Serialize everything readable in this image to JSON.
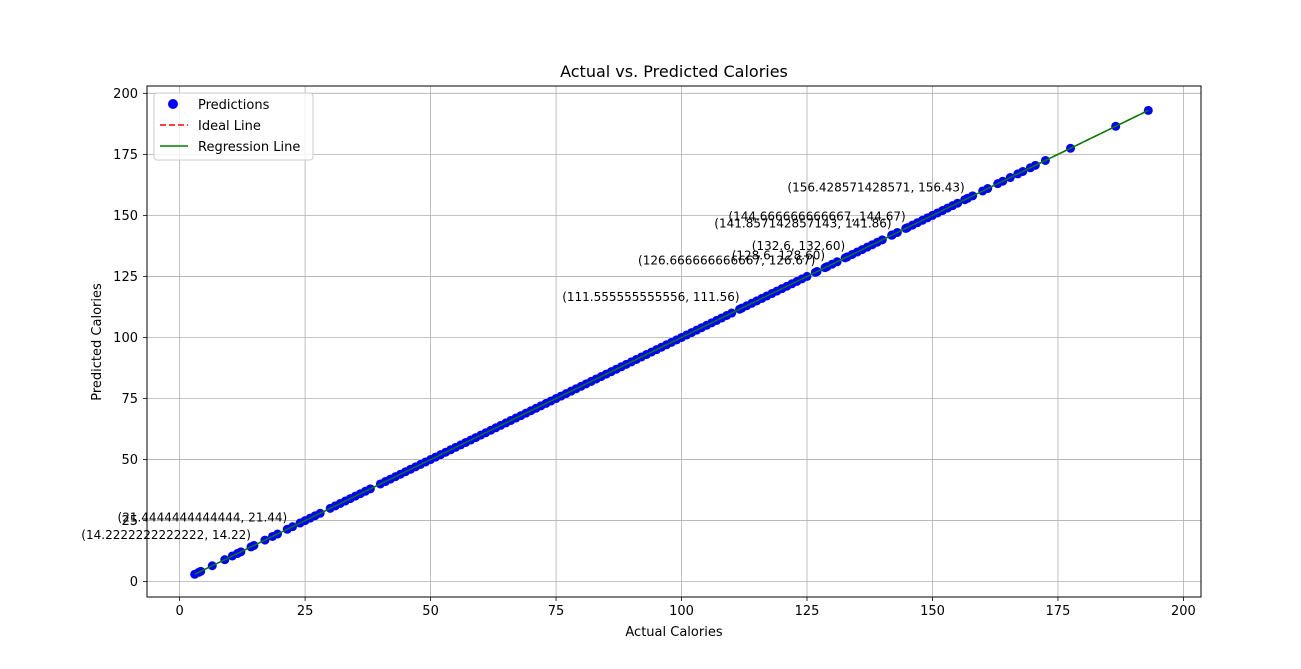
{
  "chart_data": {
    "type": "scatter",
    "title": "Actual vs. Predicted Calories",
    "xlabel": "Actual Calories",
    "ylabel": "Predicted Calories",
    "xlim": [
      -6.5,
      203.5
    ],
    "ylim": [
      -6.3,
      203.0
    ],
    "xticks": [
      0,
      25,
      50,
      75,
      100,
      125,
      150,
      175,
      200
    ],
    "yticks": [
      0,
      25,
      50,
      75,
      100,
      125,
      150,
      175,
      200
    ],
    "grid": true,
    "legend_position": "upper-left",
    "series": [
      {
        "name": "Predictions",
        "kind": "scatter",
        "color": "#0000ff",
        "x": [
          3,
          3.8,
          4.2,
          6.5,
          9,
          10.5,
          11.5,
          12.2,
          14.22,
          14.8,
          17,
          18.5,
          19.5,
          21.44,
          22.5,
          24,
          25,
          26,
          27,
          28,
          30,
          31,
          32,
          33,
          34,
          35,
          36,
          37,
          38,
          40,
          41,
          42,
          43,
          44,
          45,
          46,
          47,
          48,
          49,
          50,
          51,
          52,
          53,
          54,
          55,
          56,
          57,
          58,
          59,
          60,
          61,
          62,
          63,
          64,
          65,
          66,
          67,
          68,
          69,
          70,
          71,
          72,
          73,
          74,
          75,
          76,
          77,
          78,
          79,
          80,
          81,
          82,
          83,
          84,
          85,
          86,
          87,
          88,
          89,
          90,
          91,
          92,
          93,
          94,
          95,
          96,
          97,
          98,
          99,
          100,
          101,
          102,
          103,
          104,
          105,
          106,
          107,
          108,
          109,
          110,
          111.56,
          112,
          113,
          114,
          115,
          116,
          117,
          118,
          119,
          120,
          121,
          122,
          123,
          124,
          125,
          126.67,
          127,
          128.6,
          129,
          130,
          131,
          132.6,
          133,
          134,
          135,
          136,
          137,
          138,
          139,
          140,
          141.86,
          142,
          143,
          144.67,
          145,
          146,
          147,
          148,
          149,
          150,
          151,
          152,
          153,
          154,
          155,
          156.43,
          157,
          158,
          160,
          161,
          163,
          164,
          165.5,
          167,
          168,
          169.5,
          170.5,
          172.5,
          177.5,
          186.5,
          193
        ],
        "y": [
          3,
          3.8,
          4.2,
          6.5,
          9,
          10.5,
          11.5,
          12.2,
          14.22,
          14.8,
          17,
          18.5,
          19.5,
          21.44,
          22.5,
          24,
          25,
          26,
          27,
          28,
          30,
          31,
          32,
          33,
          34,
          35,
          36,
          37,
          38,
          40,
          41,
          42,
          43,
          44,
          45,
          46,
          47,
          48,
          49,
          50,
          51,
          52,
          53,
          54,
          55,
          56,
          57,
          58,
          59,
          60,
          61,
          62,
          63,
          64,
          65,
          66,
          67,
          68,
          69,
          70,
          71,
          72,
          73,
          74,
          75,
          76,
          77,
          78,
          79,
          80,
          81,
          82,
          83,
          84,
          85,
          86,
          87,
          88,
          89,
          90,
          91,
          92,
          93,
          94,
          95,
          96,
          97,
          98,
          99,
          100,
          101,
          102,
          103,
          104,
          105,
          106,
          107,
          108,
          109,
          110,
          111.56,
          112,
          113,
          114,
          115,
          116,
          117,
          118,
          119,
          120,
          121,
          122,
          123,
          124,
          125,
          126.67,
          127,
          128.6,
          129,
          130,
          131,
          132.6,
          133,
          134,
          135,
          136,
          137,
          138,
          139,
          140,
          141.86,
          142,
          143,
          144.67,
          145,
          146,
          147,
          148,
          149,
          150,
          151,
          152,
          153,
          154,
          155,
          156.43,
          157,
          158,
          160,
          161,
          163,
          164,
          165.5,
          167,
          168,
          169.5,
          170.5,
          172.5,
          177.5,
          186.5,
          193
        ]
      },
      {
        "name": "Ideal Line",
        "kind": "line",
        "style": "dashed",
        "color": "#ff0000",
        "x": [
          3,
          193
        ],
        "y": [
          3,
          193
        ]
      },
      {
        "name": "Regression Line",
        "kind": "line",
        "style": "solid",
        "color": "#008000",
        "x": [
          3,
          193
        ],
        "y": [
          3,
          193
        ]
      }
    ],
    "annotations": [
      {
        "text": "(156.428571428571, 156.43)",
        "x": 156.43,
        "y": 156.43
      },
      {
        "text": "(144.666666666667, 144.67)",
        "x": 144.67,
        "y": 144.67
      },
      {
        "text": "(141.857142857143, 141.86)",
        "x": 141.86,
        "y": 141.86
      },
      {
        "text": "(132.6, 132.60)",
        "x": 132.6,
        "y": 132.6
      },
      {
        "text": "(128.6, 128.60)",
        "x": 128.6,
        "y": 128.6
      },
      {
        "text": "(126.666666666667, 126.67)",
        "x": 126.67,
        "y": 126.67
      },
      {
        "text": "(111.555555555556, 111.56)",
        "x": 111.56,
        "y": 111.56
      },
      {
        "text": "(21.4444444444444, 21.44)",
        "x": 21.44,
        "y": 21.44
      },
      {
        "text": "(14.2222222222222, 14.22)",
        "x": 14.22,
        "y": 14.22
      }
    ]
  }
}
